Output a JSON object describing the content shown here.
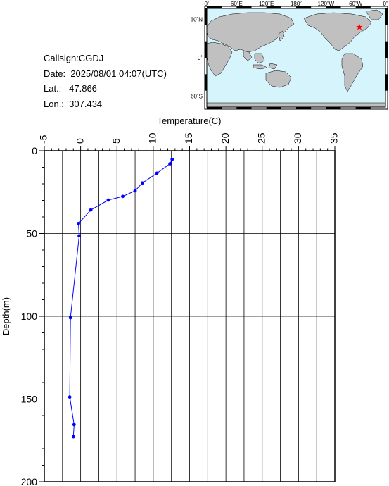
{
  "info": {
    "callsign": "Callsign:CGDJ",
    "date_label": "Date:",
    "date_value": "2025/08/01 04:07(UTC)",
    "lat_label": "Lat.:",
    "lat_value": "47.866",
    "lon_label": "Lon.:",
    "lon_value": "307.434"
  },
  "map": {
    "lon_labels": [
      "0˚",
      "60˚E",
      "120˚E",
      "180˚",
      "120˚W",
      "60˚W",
      "0˚"
    ],
    "lat_labels": [
      "60˚N",
      "0˚",
      "60˚S"
    ],
    "ocean_color": "#d6f4fc",
    "land_color": "#c0c0c0",
    "marker": {
      "lon": 307.434,
      "lat": 47.866,
      "color": "#ff0000",
      "symbol": "star"
    }
  },
  "chart_data": {
    "type": "line",
    "title": "",
    "xlabel": "Temperature(C)",
    "ylabel": "Depth(m)",
    "xlim": [
      -5,
      35
    ],
    "ylim": [
      0,
      200
    ],
    "y_inverted": true,
    "x_axis_position": "top",
    "x_ticks": [
      -5,
      0,
      5,
      10,
      15,
      20,
      25,
      30,
      35
    ],
    "y_ticks": [
      0,
      50,
      100,
      150,
      200
    ],
    "grid": true,
    "line_color": "#0000ff",
    "series": [
      {
        "x": [
          12.6,
          12.3,
          10.5,
          8.5,
          7.5,
          5.8,
          3.8,
          1.4,
          -0.3,
          -0.2,
          -1.4,
          -1.5,
          -0.9,
          -1.0
        ],
        "y": [
          5.2,
          7.9,
          13.6,
          19.5,
          24.2,
          27.6,
          29.8,
          35.8,
          44.0,
          51.4,
          100.8,
          148.8,
          165.5,
          172.8
        ]
      }
    ]
  }
}
